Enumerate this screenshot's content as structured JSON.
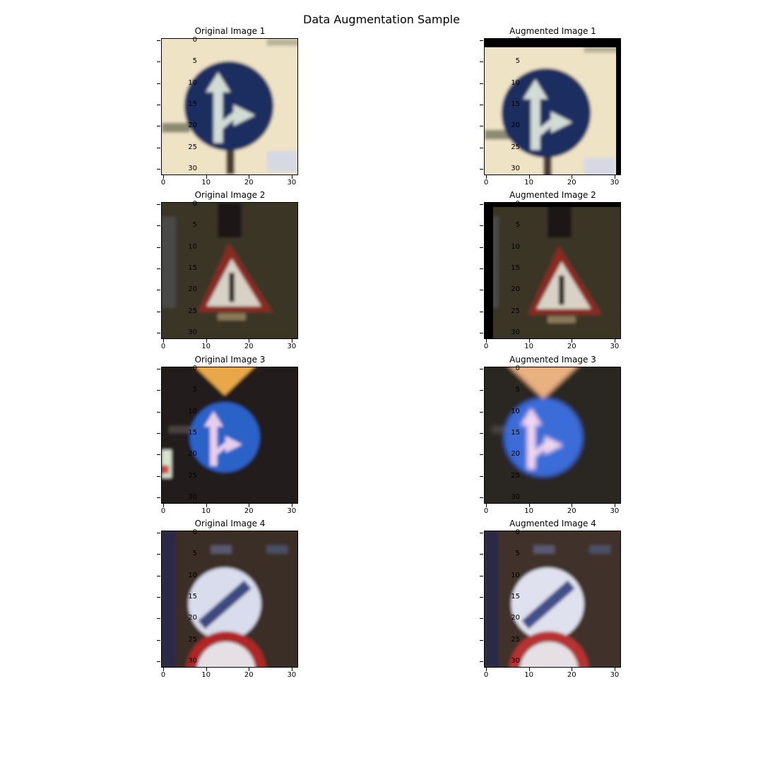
{
  "figure": {
    "title": "Data Augmentation Sample",
    "x_ticks": [
      "0",
      "10",
      "20",
      "30"
    ],
    "y_ticks": [
      "0",
      "5",
      "10",
      "15",
      "20",
      "25",
      "30"
    ]
  },
  "panels": [
    {
      "title": "Original Image 1",
      "scene": "keep-straight-or-right sign",
      "colors": {
        "background": "#efe3c6",
        "sign": "#1e2f60",
        "arrow": "#d2dcd6"
      }
    },
    {
      "title": "Augmented Image 1",
      "scene": "keep-straight-or-right sign, shifted with black border top and right",
      "colors": {
        "background": "#efe3c6",
        "sign": "#1e2f60",
        "arrow": "#d2dcd6",
        "padding": "#000000"
      }
    },
    {
      "title": "Original Image 2",
      "scene": "triangular warning sign at night",
      "colors": {
        "background": "#3b3526",
        "triangle": "#8a2a24",
        "inner": "#d8d2c6"
      }
    },
    {
      "title": "Augmented Image 2",
      "scene": "triangular warning sign, shifted with black border top and left",
      "colors": {
        "background": "#3b3526",
        "triangle": "#8a2a24",
        "inner": "#d8d2c6",
        "padding": "#000000"
      }
    },
    {
      "title": "Original Image 3",
      "scene": "blue keep-straight-or-right sign under orange sign",
      "colors": {
        "background": "#221e1c",
        "sign": "#2c62c8",
        "arrow": "#e7cdec",
        "top": "#e8a84a"
      }
    },
    {
      "title": "Augmented Image 3",
      "scene": "blue sign, brightened and zoomed",
      "colors": {
        "background": "#2a2524",
        "sign": "#3a6cd8",
        "arrow": "#f0d6f0",
        "top": "#e9b080"
      }
    },
    {
      "title": "Original Image 4",
      "scene": "end of restriction sign above red-rimmed sign",
      "colors": {
        "background": "#3a2e26",
        "sign": "#d8dcec",
        "stripe": "#3c4a80",
        "lower_ring": "#b02828"
      }
    },
    {
      "title": "Augmented Image 4",
      "scene": "end of restriction sign, brightness variation",
      "colors": {
        "background": "#3f322a",
        "sign": "#dfe1ee",
        "stripe": "#43508a",
        "lower_ring": "#b83030"
      }
    }
  ]
}
